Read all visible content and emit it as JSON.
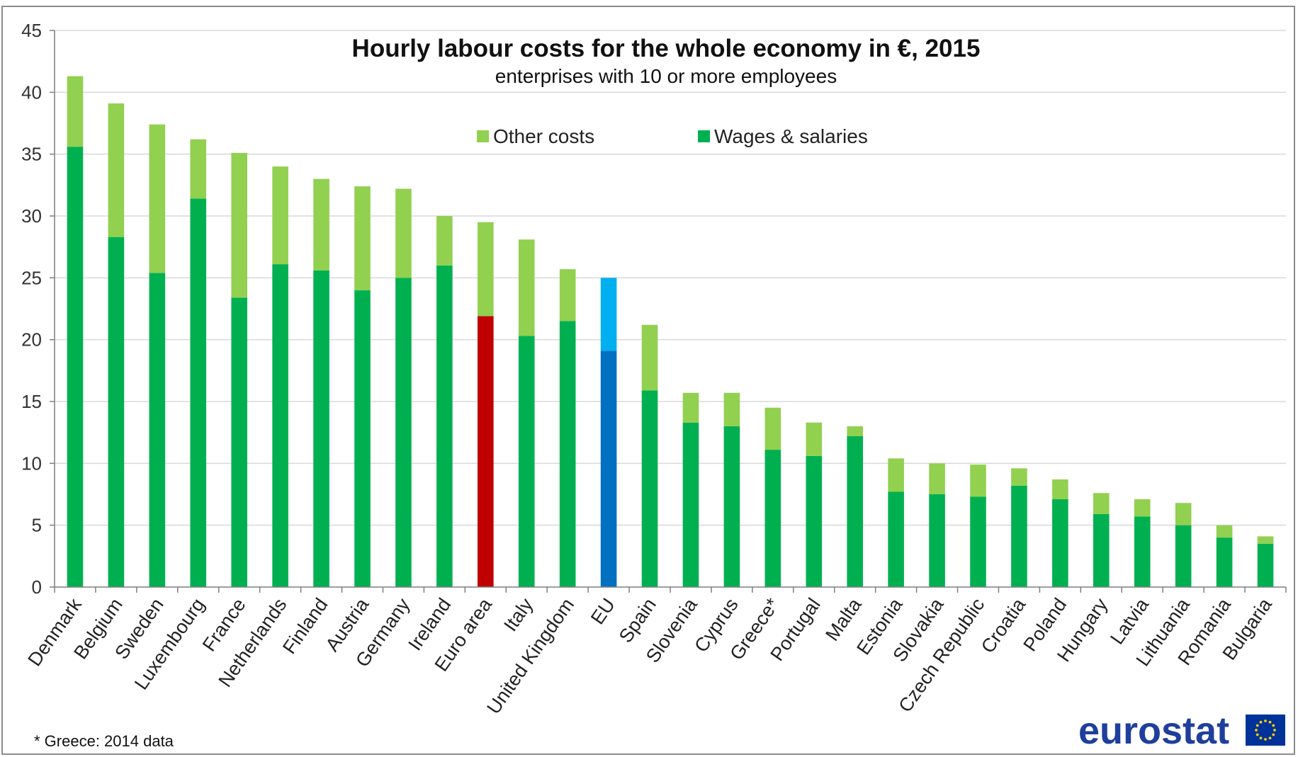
{
  "colors": {
    "other_costs": "#92d050",
    "wages": "#00b050",
    "euro_area_wages": "#c00000",
    "eu_other": "#00b0f0",
    "eu_wages": "#0070c0",
    "grid": "#d9d9d9",
    "axis": "#7f7f7f",
    "logo": "#1f3f9c",
    "eu_flag": "#003399",
    "eu_star": "#ffcc00"
  },
  "logo": {
    "text": "eurostat"
  },
  "footnote": "* Greece: 2014 data",
  "chart_data": {
    "type": "bar",
    "stacked": true,
    "title": "Hourly labour costs for the whole economy  in €, 2015",
    "subtitle": "enterprises with 10 or more employees",
    "xlabel": "",
    "ylabel": "",
    "ylim": [
      0,
      45
    ],
    "yticks": [
      0,
      5,
      10,
      15,
      20,
      25,
      30,
      35,
      40,
      45
    ],
    "grid": true,
    "legend": [
      "Other costs",
      "Wages & salaries"
    ],
    "categories": [
      "Denmark",
      "Belgium",
      "Sweden",
      "Luxembourg",
      "France",
      "Netherlands",
      "Finland",
      "Austria",
      "Germany",
      "Ireland",
      "Euro area",
      "Italy",
      "United Kingdom",
      "EU",
      "Spain",
      "Slovenia",
      "Cyprus",
      "Greece*",
      "Portugal",
      "Malta",
      "Estonia",
      "Slovakia",
      "Czech Republic",
      "Croatia",
      "Poland",
      "Hungary",
      "Latvia",
      "Lithuania",
      "Romania",
      "Bulgaria"
    ],
    "series": [
      {
        "name": "Wages & salaries",
        "values": [
          35.6,
          28.3,
          25.4,
          31.4,
          23.4,
          26.1,
          25.6,
          24.0,
          25.0,
          26.0,
          21.9,
          20.3,
          21.5,
          19.1,
          15.9,
          13.3,
          13.0,
          11.1,
          10.6,
          12.2,
          7.7,
          7.5,
          7.3,
          8.2,
          7.1,
          5.9,
          5.7,
          5.0,
          4.0,
          3.5
        ]
      },
      {
        "name": "Other costs",
        "values": [
          5.7,
          10.8,
          12.0,
          4.8,
          11.7,
          7.9,
          7.4,
          8.4,
          7.2,
          4.0,
          7.6,
          7.8,
          4.2,
          5.9,
          5.3,
          2.4,
          2.7,
          3.4,
          2.7,
          0.8,
          2.7,
          2.5,
          2.6,
          1.4,
          1.6,
          1.7,
          1.4,
          1.8,
          1.0,
          0.6
        ]
      }
    ]
  }
}
